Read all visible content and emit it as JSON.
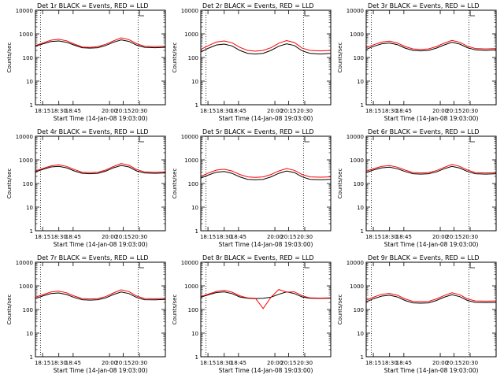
{
  "figure": {
    "ylabel": "Counts/sec",
    "xlabel": "Start Time (14-Jan-08 19:03:00)",
    "x_tick_labels": [
      "18:15",
      "18:30",
      "18:45",
      "20:00",
      "20:15",
      "20:30"
    ],
    "y_tick_labels": [
      "1",
      "10",
      "100",
      "1000",
      "10000"
    ],
    "colors": {
      "events": "#000000",
      "lld": "#ff0000",
      "axes": "#000000"
    }
  },
  "chart_data": [
    {
      "type": "line",
      "scale_y": "log",
      "ylim": [
        1,
        10000
      ],
      "title": "Det 1r BLACK = Events, RED = LLD",
      "x": [
        "18:00",
        "18:10",
        "18:20",
        "18:30",
        "18:40",
        "18:50",
        "19:00",
        "19:10",
        "19:20",
        "19:30",
        "19:40",
        "19:50",
        "20:00",
        "20:10",
        "20:20",
        "20:30",
        "20:40"
      ],
      "xtick_labels": [
        "18:15",
        "18:30",
        "18:45",
        "20:00",
        "20:15",
        "20:30"
      ],
      "series": [
        {
          "name": "Events",
          "color": "#000000",
          "values": [
            300,
            380,
            470,
            500,
            440,
            330,
            260,
            250,
            260,
            320,
            440,
            560,
            480,
            330,
            270,
            260,
            270
          ]
        },
        {
          "name": "LLD",
          "color": "#ff0000",
          "values": [
            320,
            420,
            540,
            590,
            510,
            370,
            280,
            270,
            290,
            360,
            500,
            680,
            570,
            380,
            300,
            290,
            300
          ]
        }
      ]
    },
    {
      "type": "line",
      "scale_y": "log",
      "ylim": [
        1,
        10000
      ],
      "title": "Det 2r BLACK = Events, RED = LLD",
      "x": [
        "18:00",
        "18:10",
        "18:20",
        "18:30",
        "18:40",
        "18:50",
        "19:00",
        "19:10",
        "19:20",
        "19:30",
        "19:40",
        "19:50",
        "20:00",
        "20:10",
        "20:20",
        "20:30",
        "20:40"
      ],
      "xtick_labels": [
        "18:15",
        "18:30",
        "18:45",
        "20:00",
        "20:15",
        "20:30"
      ],
      "series": [
        {
          "name": "Events",
          "color": "#000000",
          "values": [
            170,
            250,
            340,
            370,
            310,
            200,
            150,
            140,
            150,
            200,
            300,
            380,
            320,
            190,
            150,
            140,
            150
          ]
        },
        {
          "name": "LLD",
          "color": "#ff0000",
          "values": [
            220,
            320,
            450,
            500,
            420,
            270,
            200,
            185,
            200,
            260,
            400,
            520,
            430,
            250,
            200,
            190,
            200
          ]
        }
      ]
    },
    {
      "type": "line",
      "scale_y": "log",
      "ylim": [
        1,
        10000
      ],
      "title": "Det 3r BLACK = Events, RED = LLD",
      "x": [
        "18:00",
        "18:10",
        "18:20",
        "18:30",
        "18:40",
        "18:50",
        "19:00",
        "19:10",
        "19:20",
        "19:30",
        "19:40",
        "19:50",
        "20:00",
        "20:10",
        "20:20",
        "20:30",
        "20:40"
      ],
      "xtick_labels": [
        "18:15",
        "18:30",
        "18:45",
        "20:00",
        "20:15",
        "20:30"
      ],
      "series": [
        {
          "name": "Events",
          "color": "#000000",
          "values": [
            220,
            300,
            380,
            410,
            350,
            250,
            200,
            190,
            200,
            250,
            340,
            440,
            370,
            260,
            210,
            200,
            210
          ]
        },
        {
          "name": "LLD",
          "color": "#ff0000",
          "values": [
            260,
            350,
            450,
            490,
            410,
            290,
            230,
            220,
            230,
            290,
            400,
            530,
            440,
            300,
            240,
            230,
            240
          ]
        }
      ]
    },
    {
      "type": "line",
      "scale_y": "log",
      "ylim": [
        1,
        10000
      ],
      "title": "Det 4r BLACK = Events, RED = LLD",
      "x": [
        "18:00",
        "18:10",
        "18:20",
        "18:30",
        "18:40",
        "18:50",
        "19:00",
        "19:10",
        "19:20",
        "19:30",
        "19:40",
        "19:50",
        "20:00",
        "20:10",
        "20:20",
        "20:30",
        "20:40"
      ],
      "xtick_labels": [
        "18:15",
        "18:30",
        "18:45",
        "20:00",
        "20:15",
        "20:30"
      ],
      "series": [
        {
          "name": "Events",
          "color": "#000000",
          "values": [
            310,
            400,
            500,
            530,
            460,
            340,
            270,
            260,
            270,
            330,
            460,
            580,
            500,
            340,
            280,
            270,
            280
          ]
        },
        {
          "name": "LLD",
          "color": "#ff0000",
          "values": [
            340,
            440,
            560,
            620,
            530,
            390,
            300,
            290,
            300,
            370,
            520,
            700,
            590,
            390,
            310,
            300,
            310
          ]
        }
      ]
    },
    {
      "type": "line",
      "scale_y": "log",
      "ylim": [
        1,
        10000
      ],
      "title": "Det 5r BLACK = Events, RED = LLD",
      "x": [
        "18:00",
        "18:10",
        "18:20",
        "18:30",
        "18:40",
        "18:50",
        "19:00",
        "19:10",
        "19:20",
        "19:30",
        "19:40",
        "19:50",
        "20:00",
        "20:10",
        "20:20",
        "20:30",
        "20:40"
      ],
      "xtick_labels": [
        "18:15",
        "18:30",
        "18:45",
        "20:00",
        "20:15",
        "20:30"
      ],
      "series": [
        {
          "name": "Events",
          "color": "#000000",
          "values": [
            170,
            230,
            300,
            320,
            270,
            190,
            150,
            145,
            150,
            190,
            270,
            340,
            290,
            190,
            150,
            145,
            150
          ]
        },
        {
          "name": "LLD",
          "color": "#ff0000",
          "values": [
            200,
            280,
            370,
            400,
            340,
            240,
            190,
            180,
            190,
            240,
            340,
            430,
            360,
            240,
            190,
            185,
            190
          ]
        }
      ]
    },
    {
      "type": "line",
      "scale_y": "log",
      "ylim": [
        1,
        10000
      ],
      "title": "Det 6r BLACK = Events, RED = LLD",
      "x": [
        "18:00",
        "18:10",
        "18:20",
        "18:30",
        "18:40",
        "18:50",
        "19:00",
        "19:10",
        "19:20",
        "19:30",
        "19:40",
        "19:50",
        "20:00",
        "20:10",
        "20:20",
        "20:30",
        "20:40"
      ],
      "xtick_labels": [
        "18:15",
        "18:30",
        "18:45",
        "20:00",
        "20:15",
        "20:30"
      ],
      "series": [
        {
          "name": "Events",
          "color": "#000000",
          "values": [
            290,
            380,
            460,
            490,
            420,
            320,
            260,
            250,
            260,
            310,
            420,
            530,
            450,
            320,
            260,
            250,
            260
          ]
        },
        {
          "name": "LLD",
          "color": "#ff0000",
          "values": [
            330,
            430,
            530,
            570,
            490,
            370,
            290,
            280,
            290,
            350,
            480,
            640,
            530,
            370,
            290,
            280,
            290
          ]
        }
      ]
    },
    {
      "type": "line",
      "scale_y": "log",
      "ylim": [
        1,
        10000
      ],
      "title": "Det 7r BLACK = Events, RED = LLD",
      "x": [
        "18:00",
        "18:10",
        "18:20",
        "18:30",
        "18:40",
        "18:50",
        "19:00",
        "19:10",
        "19:20",
        "19:30",
        "19:40",
        "19:50",
        "20:00",
        "20:10",
        "20:20",
        "20:30",
        "20:40"
      ],
      "xtick_labels": [
        "18:15",
        "18:30",
        "18:45",
        "20:00",
        "20:15",
        "20:30"
      ],
      "series": [
        {
          "name": "Events",
          "color": "#000000",
          "values": [
            290,
            380,
            470,
            500,
            430,
            320,
            260,
            250,
            260,
            310,
            430,
            550,
            470,
            320,
            260,
            255,
            265
          ]
        },
        {
          "name": "LLD",
          "color": "#ff0000",
          "values": [
            330,
            430,
            550,
            600,
            510,
            370,
            290,
            280,
            290,
            350,
            500,
            680,
            570,
            370,
            290,
            285,
            295
          ]
        }
      ]
    },
    {
      "type": "line",
      "scale_y": "log",
      "ylim": [
        1,
        10000
      ],
      "title": "Det 8r BLACK = Events, RED = LLD",
      "x": [
        "18:00",
        "18:10",
        "18:20",
        "18:30",
        "18:40",
        "18:50",
        "19:00",
        "19:10",
        "19:20",
        "19:30",
        "19:40",
        "19:50",
        "20:00",
        "20:10",
        "20:20",
        "20:30",
        "20:40"
      ],
      "xtick_labels": [
        "18:15",
        "18:30",
        "18:45",
        "20:00",
        "20:15",
        "20:30"
      ],
      "series": [
        {
          "name": "Events",
          "color": "#000000",
          "values": [
            330,
            420,
            520,
            560,
            470,
            340,
            300,
            290,
            300,
            330,
            440,
            560,
            470,
            340,
            300,
            295,
            300
          ]
        },
        {
          "name": "LLD",
          "color": "#ff0000",
          "values": [
            350,
            450,
            580,
            650,
            540,
            380,
            310,
            300,
            110,
            330,
            700,
            540,
            560,
            380,
            310,
            305,
            310
          ]
        }
      ]
    },
    {
      "type": "line",
      "scale_y": "log",
      "ylim": [
        1,
        10000
      ],
      "title": "Det 9r BLACK = Events, RED = LLD",
      "x": [
        "18:00",
        "18:10",
        "18:20",
        "18:30",
        "18:40",
        "18:50",
        "19:00",
        "19:10",
        "19:20",
        "19:30",
        "19:40",
        "19:50",
        "20:00",
        "20:10",
        "20:20",
        "20:30",
        "20:40"
      ],
      "xtick_labels": [
        "18:15",
        "18:30",
        "18:45",
        "20:00",
        "20:15",
        "20:30"
      ],
      "series": [
        {
          "name": "Events",
          "color": "#000000",
          "values": [
            210,
            290,
            370,
            400,
            340,
            240,
            190,
            185,
            190,
            240,
            330,
            420,
            350,
            240,
            200,
            195,
            200
          ]
        },
        {
          "name": "LLD",
          "color": "#ff0000",
          "values": [
            250,
            340,
            440,
            480,
            400,
            280,
            220,
            215,
            220,
            280,
            390,
            510,
            420,
            280,
            230,
            225,
            230
          ]
        }
      ]
    }
  ]
}
